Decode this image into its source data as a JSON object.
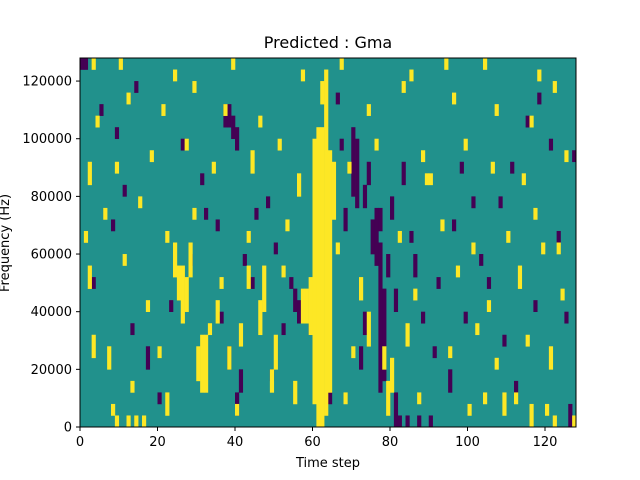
{
  "chart_data": {
    "type": "heatmap",
    "title": "Predicted : Gma",
    "xlabel": "Time step",
    "ylabel": "Frequency (Hz)",
    "xlim": [
      0,
      128
    ],
    "ylim": [
      0,
      128000
    ],
    "x_ticks": [
      0,
      20,
      40,
      60,
      80,
      100,
      120
    ],
    "x_tick_labels": [
      "0",
      "20",
      "40",
      "60",
      "80",
      "100",
      "120"
    ],
    "y_ticks": [
      0,
      20000,
      40000,
      60000,
      80000,
      100000,
      120000
    ],
    "y_tick_labels": [
      "0",
      "20000",
      "40000",
      "60000",
      "80000",
      "100000",
      "120000"
    ],
    "grid": false,
    "colormap": "viridis",
    "colors": {
      "background": "#21918c",
      "high": "#fde725",
      "low": "#440154"
    },
    "cell_size": {
      "time_steps": 1,
      "frequency_hz": 4000
    },
    "value_levels": {
      "low": 0,
      "background": 0.5,
      "high": 1
    },
    "cells_high": [
      [
        61,
        0,
        25
      ],
      [
        62,
        0,
        25
      ],
      [
        63,
        1,
        25
      ],
      [
        60,
        2,
        24
      ],
      [
        64,
        3,
        23
      ],
      [
        59,
        8,
        12
      ],
      [
        58,
        9,
        11
      ],
      [
        57,
        9,
        11
      ],
      [
        65,
        18,
        22
      ],
      [
        63,
        26,
        30
      ],
      [
        62,
        28,
        29
      ],
      [
        31,
        3,
        7
      ],
      [
        32,
        3,
        7
      ],
      [
        30,
        4,
        6
      ],
      [
        26,
        9,
        13
      ],
      [
        25,
        11,
        13
      ],
      [
        27,
        10,
        12
      ],
      [
        24,
        13,
        15
      ],
      [
        28,
        13,
        15
      ],
      [
        47,
        10,
        13
      ],
      [
        46,
        8,
        10
      ],
      [
        50,
        5,
        7
      ],
      [
        49,
        3,
        4
      ],
      [
        79,
        1,
        3
      ],
      [
        80,
        3,
        5
      ],
      [
        78,
        5,
        6
      ],
      [
        74,
        7,
        9
      ],
      [
        72,
        11,
        12
      ],
      [
        38,
        5,
        6
      ],
      [
        41,
        7,
        8
      ],
      [
        35,
        9,
        10
      ],
      [
        43,
        12,
        13
      ],
      [
        56,
        20,
        21
      ],
      [
        89,
        21,
        21
      ],
      [
        90,
        21,
        21
      ],
      [
        8,
        1,
        1
      ],
      [
        9,
        0,
        0
      ],
      [
        12,
        0,
        0
      ],
      [
        14,
        0,
        0
      ],
      [
        16,
        0,
        0
      ],
      [
        22,
        1,
        2
      ],
      [
        40,
        1,
        1
      ],
      [
        55,
        2,
        3
      ],
      [
        87,
        2,
        2
      ],
      [
        100,
        1,
        1
      ],
      [
        109,
        1,
        2
      ],
      [
        116,
        0,
        1
      ],
      [
        122,
        0,
        0
      ],
      [
        127,
        0,
        0
      ],
      [
        13,
        3,
        3
      ],
      [
        68,
        2,
        2
      ],
      [
        104,
        2,
        2
      ],
      [
        112,
        2,
        2
      ],
      [
        120,
        1,
        1
      ],
      [
        3,
        6,
        7
      ],
      [
        7,
        5,
        6
      ],
      [
        20,
        6,
        6
      ],
      [
        33,
        8,
        8
      ],
      [
        70,
        6,
        6
      ],
      [
        84,
        7,
        8
      ],
      [
        95,
        6,
        6
      ],
      [
        102,
        8,
        8
      ],
      [
        107,
        5,
        5
      ],
      [
        115,
        7,
        7
      ],
      [
        121,
        5,
        6
      ],
      [
        2,
        12,
        13
      ],
      [
        11,
        14,
        14
      ],
      [
        17,
        10,
        10
      ],
      [
        36,
        12,
        12
      ],
      [
        52,
        13,
        13
      ],
      [
        86,
        11,
        11
      ],
      [
        97,
        13,
        13
      ],
      [
        105,
        10,
        10
      ],
      [
        113,
        12,
        13
      ],
      [
        119,
        15,
        15
      ],
      [
        124,
        11,
        11
      ],
      [
        1,
        16,
        16
      ],
      [
        6,
        18,
        18
      ],
      [
        15,
        19,
        19
      ],
      [
        22,
        16,
        16
      ],
      [
        29,
        18,
        18
      ],
      [
        43,
        16,
        16
      ],
      [
        53,
        17,
        17
      ],
      [
        66,
        15,
        15
      ],
      [
        82,
        16,
        16
      ],
      [
        93,
        17,
        17
      ],
      [
        101,
        15,
        15
      ],
      [
        110,
        16,
        16
      ],
      [
        117,
        18,
        18
      ],
      [
        123,
        15,
        15
      ],
      [
        2,
        21,
        22
      ],
      [
        9,
        22,
        22
      ],
      [
        18,
        23,
        23
      ],
      [
        27,
        24,
        24
      ],
      [
        34,
        22,
        22
      ],
      [
        44,
        22,
        23
      ],
      [
        51,
        24,
        24
      ],
      [
        69,
        22,
        22
      ],
      [
        76,
        24,
        24
      ],
      [
        88,
        23,
        23
      ],
      [
        99,
        24,
        24
      ],
      [
        106,
        22,
        22
      ],
      [
        114,
        21,
        21
      ],
      [
        125,
        23,
        23
      ],
      [
        4,
        26,
        26
      ],
      [
        12,
        28,
        28
      ],
      [
        21,
        27,
        27
      ],
      [
        29,
        29,
        29
      ],
      [
        37,
        27,
        27
      ],
      [
        46,
        26,
        26
      ],
      [
        74,
        27,
        27
      ],
      [
        83,
        29,
        29
      ],
      [
        96,
        28,
        28
      ],
      [
        107,
        27,
        27
      ],
      [
        116,
        26,
        26
      ],
      [
        122,
        29,
        29
      ],
      [
        3,
        31,
        31
      ],
      [
        10,
        31,
        31
      ],
      [
        24,
        30,
        30
      ],
      [
        39,
        31,
        31
      ],
      [
        57,
        30,
        30
      ],
      [
        67,
        31,
        31
      ],
      [
        85,
        30,
        30
      ],
      [
        94,
        31,
        31
      ],
      [
        104,
        31,
        31
      ],
      [
        118,
        30,
        30
      ]
    ],
    "cells_low": [
      [
        70,
        20,
        25
      ],
      [
        71,
        19,
        24
      ],
      [
        77,
        3,
        15
      ],
      [
        78,
        4,
        11
      ],
      [
        76,
        14,
        18
      ],
      [
        75,
        15,
        17
      ],
      [
        56,
        9,
        10
      ],
      [
        55,
        10,
        11
      ],
      [
        54,
        12,
        12
      ],
      [
        37,
        26,
        27
      ],
      [
        38,
        26,
        27
      ],
      [
        39,
        25,
        26
      ],
      [
        40,
        24,
        25
      ],
      [
        38,
        5,
        6
      ],
      [
        40,
        1,
        2
      ],
      [
        41,
        3,
        4
      ],
      [
        73,
        19,
        20
      ],
      [
        74,
        21,
        22
      ],
      [
        77,
        17,
        18
      ],
      [
        81,
        0,
        2
      ],
      [
        82,
        0,
        0
      ],
      [
        84,
        0,
        0
      ],
      [
        87,
        0,
        0
      ],
      [
        90,
        0,
        0
      ],
      [
        0,
        31,
        31
      ],
      [
        1,
        31,
        31
      ],
      [
        5,
        27,
        27
      ],
      [
        9,
        25,
        25
      ],
      [
        14,
        29,
        29
      ],
      [
        26,
        24,
        24
      ],
      [
        31,
        21,
        21
      ],
      [
        35,
        17,
        17
      ],
      [
        44,
        12,
        12
      ],
      [
        49,
        4,
        4
      ],
      [
        59,
        8,
        8
      ],
      [
        64,
        2,
        2
      ],
      [
        68,
        17,
        18
      ],
      [
        72,
        5,
        6
      ],
      [
        73,
        8,
        9
      ],
      [
        81,
        10,
        11
      ],
      [
        86,
        13,
        14
      ],
      [
        91,
        6,
        6
      ],
      [
        95,
        3,
        4
      ],
      [
        99,
        9,
        9
      ],
      [
        103,
        14,
        14
      ],
      [
        108,
        19,
        19
      ],
      [
        111,
        22,
        22
      ],
      [
        115,
        26,
        26
      ],
      [
        118,
        28,
        28
      ],
      [
        121,
        24,
        24
      ],
      [
        126,
        0,
        1
      ],
      [
        127,
        23,
        23
      ],
      [
        3,
        12,
        12
      ],
      [
        8,
        17,
        17
      ],
      [
        11,
        20,
        20
      ],
      [
        13,
        8,
        8
      ],
      [
        17,
        5,
        6
      ],
      [
        20,
        2,
        2
      ],
      [
        23,
        10,
        10
      ],
      [
        28,
        14,
        14
      ],
      [
        32,
        18,
        18
      ],
      [
        36,
        9,
        9
      ],
      [
        42,
        14,
        14
      ],
      [
        45,
        18,
        18
      ],
      [
        48,
        19,
        19
      ],
      [
        50,
        15,
        15
      ],
      [
        52,
        8,
        8
      ],
      [
        66,
        28,
        28
      ],
      [
        67,
        24,
        24
      ],
      [
        79,
        13,
        14
      ],
      [
        80,
        18,
        19
      ],
      [
        83,
        21,
        22
      ],
      [
        85,
        16,
        16
      ],
      [
        88,
        9,
        9
      ],
      [
        92,
        12,
        12
      ],
      [
        96,
        17,
        17
      ],
      [
        98,
        22,
        22
      ],
      [
        101,
        19,
        19
      ],
      [
        105,
        12,
        12
      ],
      [
        109,
        7,
        7
      ],
      [
        112,
        3,
        3
      ],
      [
        117,
        10,
        10
      ],
      [
        123,
        16,
        16
      ],
      [
        125,
        9,
        9
      ]
    ]
  }
}
